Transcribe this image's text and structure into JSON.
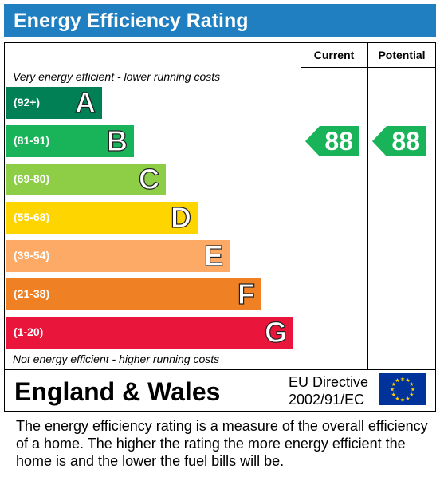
{
  "header": {
    "title": "Energy Efficiency Rating"
  },
  "columns": {
    "current": "Current",
    "potential": "Potential"
  },
  "notes": {
    "top": "Very energy efficient - lower running costs",
    "bottom": "Not energy efficient - higher running costs"
  },
  "chart_data": {
    "type": "bar",
    "title": "Energy Efficiency Rating",
    "categories": [
      "A",
      "B",
      "C",
      "D",
      "E",
      "F",
      "G"
    ],
    "ranges": [
      "(92+)",
      "(81-91)",
      "(69-80)",
      "(55-68)",
      "(39-54)",
      "(21-38)",
      "(1-20)"
    ],
    "colors": [
      "#008054",
      "#19b459",
      "#8dce46",
      "#ffd500",
      "#fcaa65",
      "#ef8023",
      "#e9153b"
    ],
    "current": {
      "value": 88,
      "band": "B"
    },
    "potential": {
      "value": 88,
      "band": "B"
    }
  },
  "footer": {
    "region": "England & Wales",
    "directive_line1": "EU Directive",
    "directive_line2": "2002/91/EC",
    "flag_icon": "eu-flag-icon"
  },
  "description": "The energy efficiency rating is a measure of the overall efficiency of a home.  The higher the rating the more energy efficient the home is and the lower the fuel bills will be."
}
